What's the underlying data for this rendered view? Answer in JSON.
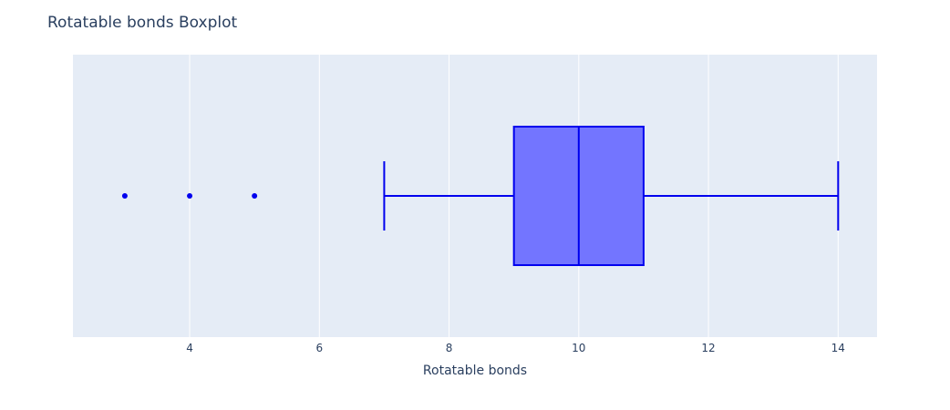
{
  "chart_data": {
    "type": "box",
    "title": "Rotatable bonds Boxplot",
    "xlabel": "Rotatable bonds",
    "ylabel": "",
    "orientation": "horizontal",
    "xlim": [
      2.2,
      14.6
    ],
    "x_ticks": [
      4,
      6,
      8,
      10,
      12,
      14
    ],
    "grid": true,
    "legend": "none",
    "series": [
      {
        "whisker_low": 7,
        "q1": 9,
        "median": 10,
        "q3": 11,
        "whisker_high": 14,
        "outliers": [
          3,
          4,
          5
        ]
      }
    ],
    "colors": {
      "box_fill": "#7375ff",
      "box_line": "#0000ee",
      "plot_bg": "#e5ecf6",
      "grid": "#ffffff",
      "text": "#2a3f5f"
    }
  }
}
